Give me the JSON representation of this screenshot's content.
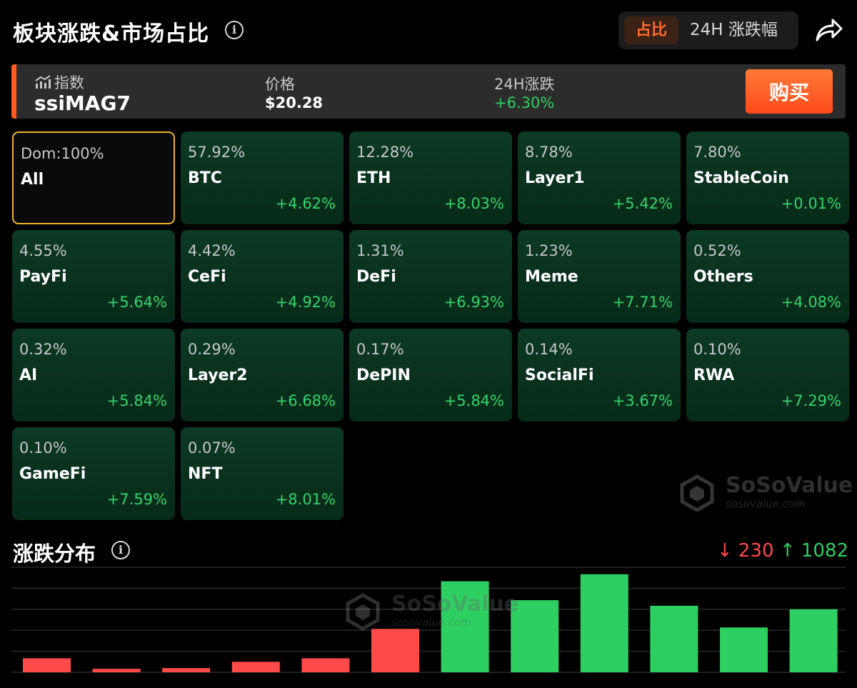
{
  "header": {
    "title": "板块涨跌&市场占比",
    "tabs": [
      {
        "label": "占比",
        "active": true
      },
      {
        "label": "24H 涨跌幅",
        "active": false
      }
    ]
  },
  "index": {
    "label": "指数",
    "name": "ssiMAG7",
    "price_label": "价格",
    "price": "$20.28",
    "change_label": "24H涨跌",
    "change": "+6.30%",
    "buy_label": "购买"
  },
  "sectors": [
    {
      "dom": "Dom:100%",
      "name": "All",
      "change": ""
    },
    {
      "dom": "57.92%",
      "name": "BTC",
      "change": "+4.62%"
    },
    {
      "dom": "12.28%",
      "name": "ETH",
      "change": "+8.03%"
    },
    {
      "dom": "8.78%",
      "name": "Layer1",
      "change": "+5.42%"
    },
    {
      "dom": "7.80%",
      "name": "StableCoin",
      "change": "+0.01%"
    },
    {
      "dom": "4.55%",
      "name": "PayFi",
      "change": "+5.64%"
    },
    {
      "dom": "4.42%",
      "name": "CeFi",
      "change": "+4.92%"
    },
    {
      "dom": "1.31%",
      "name": "DeFi",
      "change": "+6.93%"
    },
    {
      "dom": "1.23%",
      "name": "Meme",
      "change": "+7.71%"
    },
    {
      "dom": "0.52%",
      "name": "Others",
      "change": "+4.08%"
    },
    {
      "dom": "0.32%",
      "name": "AI",
      "change": "+5.84%"
    },
    {
      "dom": "0.29%",
      "name": "Layer2",
      "change": "+6.68%"
    },
    {
      "dom": "0.17%",
      "name": "DePIN",
      "change": "+5.84%"
    },
    {
      "dom": "0.14%",
      "name": "SocialFi",
      "change": "+3.67%"
    },
    {
      "dom": "0.10%",
      "name": "RWA",
      "change": "+7.29%"
    },
    {
      "dom": "0.10%",
      "name": "GameFi",
      "change": "+7.59%"
    },
    {
      "dom": "0.07%",
      "name": "NFT",
      "change": "+8.01%"
    }
  ],
  "watermark": {
    "brand": "SoSoValue",
    "url": "sosovalue.com"
  },
  "distribution": {
    "title": "涨跌分布",
    "down_count": "↓ 230",
    "up_count": "↑ 1082"
  },
  "colors": {
    "accent": "#ff5a1f",
    "up": "#2ecf62",
    "down": "#ff4a4a",
    "selected_border": "#f0b52c"
  },
  "chart_data": {
    "type": "bar",
    "categories": [
      "",
      "",
      "",
      "",
      "",
      "",
      "",
      "",
      "",
      "",
      "",
      ""
    ],
    "values": [
      20,
      5,
      6,
      15,
      20,
      62,
      130,
      103,
      140,
      95,
      64,
      90
    ],
    "colors": [
      "down",
      "down",
      "down",
      "down",
      "down",
      "down",
      "up",
      "up",
      "up",
      "up",
      "up",
      "up"
    ],
    "grid": true,
    "ylim": [
      0,
      150
    ]
  }
}
